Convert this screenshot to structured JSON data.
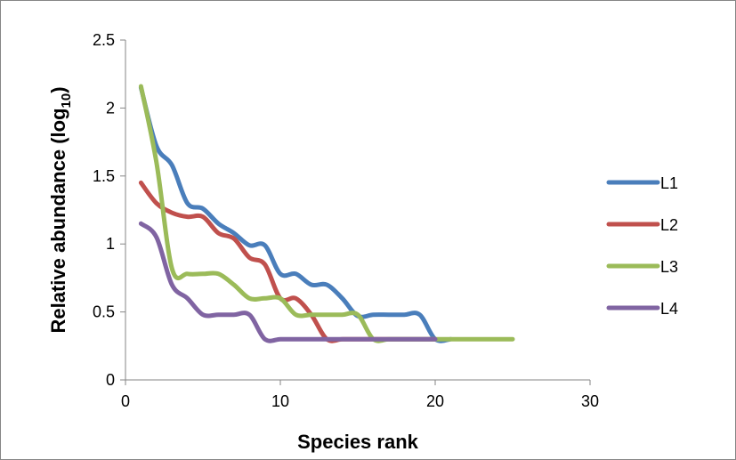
{
  "chart_data": {
    "type": "line",
    "title": "",
    "xlabel": "Species rank",
    "ylabel_main": "Relative abundance (log",
    "ylabel_sub": "10",
    "ylabel_close": ")",
    "xlim": [
      0,
      30
    ],
    "ylim": [
      0,
      2.5
    ],
    "x_ticks": [
      0,
      10,
      20,
      30
    ],
    "x_tick_labels": [
      "0",
      "10",
      "20",
      "30"
    ],
    "y_ticks": [
      0,
      0.5,
      1,
      1.5,
      2,
      2.5
    ],
    "y_tick_labels": [
      "0",
      "0.5",
      "1",
      "1.5",
      "2",
      "2.5"
    ],
    "grid": false,
    "legend_position": "right",
    "series": [
      {
        "name": "L1",
        "color": "#4a7ebb",
        "x": [
          1,
          2,
          3,
          4,
          5,
          6,
          7,
          8,
          9,
          10,
          11,
          12,
          13,
          14,
          15,
          16,
          17,
          18,
          19,
          20,
          21
        ],
        "y": [
          2.15,
          1.72,
          1.58,
          1.3,
          1.26,
          1.15,
          1.08,
          0.99,
          0.99,
          0.78,
          0.78,
          0.7,
          0.7,
          0.6,
          0.47,
          0.48,
          0.48,
          0.48,
          0.48,
          0.3,
          0.3
        ]
      },
      {
        "name": "L2",
        "color": "#c0504d",
        "x": [
          1,
          2,
          3,
          4,
          5,
          6,
          7,
          8,
          9,
          10,
          11,
          12,
          13,
          14,
          15,
          16,
          17,
          18,
          19,
          20
        ],
        "y": [
          1.45,
          1.3,
          1.23,
          1.2,
          1.2,
          1.08,
          1.04,
          0.9,
          0.85,
          0.6,
          0.6,
          0.48,
          0.3,
          0.3,
          0.3,
          0.3,
          0.3,
          0.3,
          0.3,
          0.3
        ]
      },
      {
        "name": "L3",
        "color": "#9bbb59",
        "x": [
          1,
          2,
          3,
          4,
          5,
          6,
          7,
          8,
          9,
          10,
          11,
          12,
          13,
          14,
          15,
          16,
          17,
          18,
          19,
          20,
          21,
          22,
          23,
          24,
          25
        ],
        "y": [
          2.16,
          1.6,
          0.82,
          0.78,
          0.78,
          0.78,
          0.7,
          0.6,
          0.6,
          0.6,
          0.48,
          0.48,
          0.48,
          0.48,
          0.48,
          0.3,
          0.3,
          0.3,
          0.3,
          0.3,
          0.3,
          0.3,
          0.3,
          0.3,
          0.3
        ]
      },
      {
        "name": "L4",
        "color": "#8064a2",
        "x": [
          1,
          2,
          3,
          4,
          5,
          6,
          7,
          8,
          9,
          10,
          11,
          12,
          13,
          14,
          15,
          16,
          17,
          18,
          19,
          20
        ],
        "y": [
          1.15,
          1.05,
          0.7,
          0.6,
          0.48,
          0.48,
          0.48,
          0.48,
          0.3,
          0.3,
          0.3,
          0.3,
          0.3,
          0.3,
          0.3,
          0.3,
          0.3,
          0.3,
          0.3,
          0.3
        ]
      }
    ]
  }
}
